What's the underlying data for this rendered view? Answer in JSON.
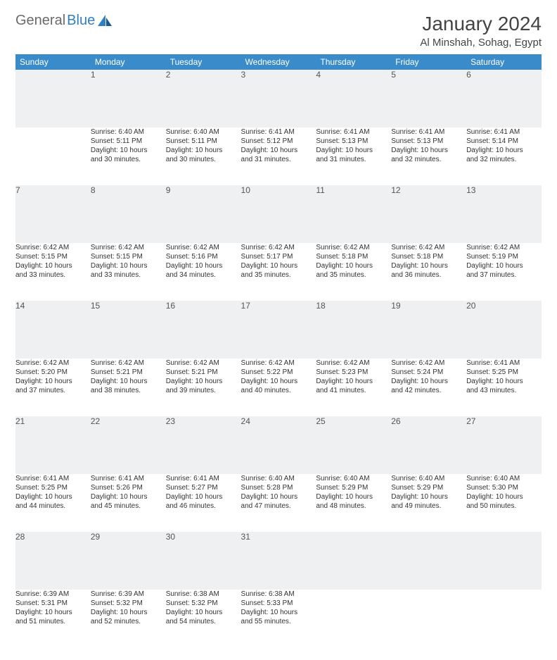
{
  "brand": {
    "part1": "General",
    "part2": "Blue"
  },
  "title": "January 2024",
  "location": "Al Minshah, Sohag, Egypt",
  "colors": {
    "header_bg": "#3a8bc9",
    "header_text": "#ffffff",
    "daynum_bg": "#eef0f2",
    "daynum_border": "#2f5f8a",
    "body_bg": "#ffffff",
    "text": "#333333",
    "logo_gray": "#6b6b6b",
    "logo_blue": "#2f7fc2"
  },
  "typography": {
    "title_fontsize": 28,
    "location_fontsize": 15,
    "header_fontsize": 12,
    "daynum_fontsize": 12,
    "cell_fontsize": 10
  },
  "weekdays": [
    "Sunday",
    "Monday",
    "Tuesday",
    "Wednesday",
    "Thursday",
    "Friday",
    "Saturday"
  ],
  "weeks": [
    {
      "nums": [
        "",
        "1",
        "2",
        "3",
        "4",
        "5",
        "6"
      ],
      "cells": [
        null,
        {
          "sunrise": "Sunrise: 6:40 AM",
          "sunset": "Sunset: 5:11 PM",
          "day1": "Daylight: 10 hours",
          "day2": "and 30 minutes."
        },
        {
          "sunrise": "Sunrise: 6:40 AM",
          "sunset": "Sunset: 5:11 PM",
          "day1": "Daylight: 10 hours",
          "day2": "and 30 minutes."
        },
        {
          "sunrise": "Sunrise: 6:41 AM",
          "sunset": "Sunset: 5:12 PM",
          "day1": "Daylight: 10 hours",
          "day2": "and 31 minutes."
        },
        {
          "sunrise": "Sunrise: 6:41 AM",
          "sunset": "Sunset: 5:13 PM",
          "day1": "Daylight: 10 hours",
          "day2": "and 31 minutes."
        },
        {
          "sunrise": "Sunrise: 6:41 AM",
          "sunset": "Sunset: 5:13 PM",
          "day1": "Daylight: 10 hours",
          "day2": "and 32 minutes."
        },
        {
          "sunrise": "Sunrise: 6:41 AM",
          "sunset": "Sunset: 5:14 PM",
          "day1": "Daylight: 10 hours",
          "day2": "and 32 minutes."
        }
      ]
    },
    {
      "nums": [
        "7",
        "8",
        "9",
        "10",
        "11",
        "12",
        "13"
      ],
      "cells": [
        {
          "sunrise": "Sunrise: 6:42 AM",
          "sunset": "Sunset: 5:15 PM",
          "day1": "Daylight: 10 hours",
          "day2": "and 33 minutes."
        },
        {
          "sunrise": "Sunrise: 6:42 AM",
          "sunset": "Sunset: 5:15 PM",
          "day1": "Daylight: 10 hours",
          "day2": "and 33 minutes."
        },
        {
          "sunrise": "Sunrise: 6:42 AM",
          "sunset": "Sunset: 5:16 PM",
          "day1": "Daylight: 10 hours",
          "day2": "and 34 minutes."
        },
        {
          "sunrise": "Sunrise: 6:42 AM",
          "sunset": "Sunset: 5:17 PM",
          "day1": "Daylight: 10 hours",
          "day2": "and 35 minutes."
        },
        {
          "sunrise": "Sunrise: 6:42 AM",
          "sunset": "Sunset: 5:18 PM",
          "day1": "Daylight: 10 hours",
          "day2": "and 35 minutes."
        },
        {
          "sunrise": "Sunrise: 6:42 AM",
          "sunset": "Sunset: 5:18 PM",
          "day1": "Daylight: 10 hours",
          "day2": "and 36 minutes."
        },
        {
          "sunrise": "Sunrise: 6:42 AM",
          "sunset": "Sunset: 5:19 PM",
          "day1": "Daylight: 10 hours",
          "day2": "and 37 minutes."
        }
      ]
    },
    {
      "nums": [
        "14",
        "15",
        "16",
        "17",
        "18",
        "19",
        "20"
      ],
      "cells": [
        {
          "sunrise": "Sunrise: 6:42 AM",
          "sunset": "Sunset: 5:20 PM",
          "day1": "Daylight: 10 hours",
          "day2": "and 37 minutes."
        },
        {
          "sunrise": "Sunrise: 6:42 AM",
          "sunset": "Sunset: 5:21 PM",
          "day1": "Daylight: 10 hours",
          "day2": "and 38 minutes."
        },
        {
          "sunrise": "Sunrise: 6:42 AM",
          "sunset": "Sunset: 5:21 PM",
          "day1": "Daylight: 10 hours",
          "day2": "and 39 minutes."
        },
        {
          "sunrise": "Sunrise: 6:42 AM",
          "sunset": "Sunset: 5:22 PM",
          "day1": "Daylight: 10 hours",
          "day2": "and 40 minutes."
        },
        {
          "sunrise": "Sunrise: 6:42 AM",
          "sunset": "Sunset: 5:23 PM",
          "day1": "Daylight: 10 hours",
          "day2": "and 41 minutes."
        },
        {
          "sunrise": "Sunrise: 6:42 AM",
          "sunset": "Sunset: 5:24 PM",
          "day1": "Daylight: 10 hours",
          "day2": "and 42 minutes."
        },
        {
          "sunrise": "Sunrise: 6:41 AM",
          "sunset": "Sunset: 5:25 PM",
          "day1": "Daylight: 10 hours",
          "day2": "and 43 minutes."
        }
      ]
    },
    {
      "nums": [
        "21",
        "22",
        "23",
        "24",
        "25",
        "26",
        "27"
      ],
      "cells": [
        {
          "sunrise": "Sunrise: 6:41 AM",
          "sunset": "Sunset: 5:25 PM",
          "day1": "Daylight: 10 hours",
          "day2": "and 44 minutes."
        },
        {
          "sunrise": "Sunrise: 6:41 AM",
          "sunset": "Sunset: 5:26 PM",
          "day1": "Daylight: 10 hours",
          "day2": "and 45 minutes."
        },
        {
          "sunrise": "Sunrise: 6:41 AM",
          "sunset": "Sunset: 5:27 PM",
          "day1": "Daylight: 10 hours",
          "day2": "and 46 minutes."
        },
        {
          "sunrise": "Sunrise: 6:40 AM",
          "sunset": "Sunset: 5:28 PM",
          "day1": "Daylight: 10 hours",
          "day2": "and 47 minutes."
        },
        {
          "sunrise": "Sunrise: 6:40 AM",
          "sunset": "Sunset: 5:29 PM",
          "day1": "Daylight: 10 hours",
          "day2": "and 48 minutes."
        },
        {
          "sunrise": "Sunrise: 6:40 AM",
          "sunset": "Sunset: 5:29 PM",
          "day1": "Daylight: 10 hours",
          "day2": "and 49 minutes."
        },
        {
          "sunrise": "Sunrise: 6:40 AM",
          "sunset": "Sunset: 5:30 PM",
          "day1": "Daylight: 10 hours",
          "day2": "and 50 minutes."
        }
      ]
    },
    {
      "nums": [
        "28",
        "29",
        "30",
        "31",
        "",
        "",
        ""
      ],
      "cells": [
        {
          "sunrise": "Sunrise: 6:39 AM",
          "sunset": "Sunset: 5:31 PM",
          "day1": "Daylight: 10 hours",
          "day2": "and 51 minutes."
        },
        {
          "sunrise": "Sunrise: 6:39 AM",
          "sunset": "Sunset: 5:32 PM",
          "day1": "Daylight: 10 hours",
          "day2": "and 52 minutes."
        },
        {
          "sunrise": "Sunrise: 6:38 AM",
          "sunset": "Sunset: 5:32 PM",
          "day1": "Daylight: 10 hours",
          "day2": "and 54 minutes."
        },
        {
          "sunrise": "Sunrise: 6:38 AM",
          "sunset": "Sunset: 5:33 PM",
          "day1": "Daylight: 10 hours",
          "day2": "and 55 minutes."
        },
        null,
        null,
        null
      ]
    }
  ]
}
